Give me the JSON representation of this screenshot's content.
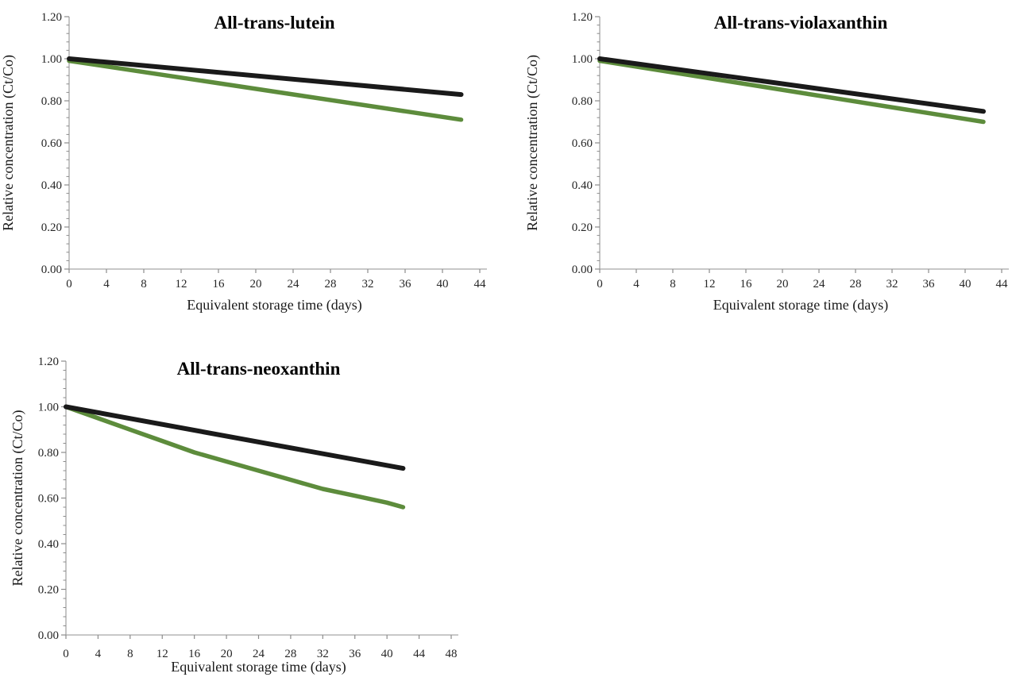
{
  "figure": {
    "background": "#ffffff",
    "axis_line_color": "#a6a6a6",
    "tick_color": "#8c8c8c",
    "tick_label_color": "#262626",
    "black_series_color": "#1a1a1a",
    "green_series_color": "#5d8c3c"
  },
  "chart_data": [
    {
      "type": "line",
      "title": "All-trans-lutein",
      "xlabel": "Equivalent storage time (days)",
      "ylabel": "Relative concentration (Ct/Co)",
      "xlim": [
        0,
        44
      ],
      "ylim": [
        0.0,
        1.2
      ],
      "x_ticks": [
        0,
        4,
        8,
        12,
        16,
        20,
        24,
        28,
        32,
        36,
        40,
        44
      ],
      "x_tick_labels": [
        "0",
        "4",
        "8",
        "12",
        "16",
        "20",
        "24",
        "28",
        "32",
        "36",
        "40",
        "44"
      ],
      "y_ticks": [
        0.0,
        0.2,
        0.4,
        0.6,
        0.8,
        1.0,
        1.2
      ],
      "y_tick_labels": [
        "0.00",
        "0.20",
        "0.40",
        "0.60",
        "0.80",
        "1.00",
        "1.20"
      ],
      "y_minor_tick_step": 0.04,
      "grid": false,
      "legend": false,
      "series": [
        {
          "name": "black-line",
          "color": "#1a1a1a",
          "stroke_width": 6,
          "x": [
            0,
            42
          ],
          "y": [
            1.0,
            0.83
          ]
        },
        {
          "name": "green-line",
          "color": "#5d8c3c",
          "stroke_width": 5.5,
          "x": [
            0,
            42
          ],
          "y": [
            0.99,
            0.71
          ]
        }
      ]
    },
    {
      "type": "line",
      "title": "All-trans-violaxanthin",
      "xlabel": "Equivalent storage time (days)",
      "ylabel": "Relative concentration (Ct/Co)",
      "xlim": [
        0,
        44
      ],
      "ylim": [
        0.0,
        1.2
      ],
      "x_ticks": [
        0,
        4,
        8,
        12,
        16,
        20,
        24,
        28,
        32,
        36,
        40,
        44
      ],
      "x_tick_labels": [
        "0",
        "4",
        "8",
        "12",
        "16",
        "20",
        "24",
        "28",
        "32",
        "36",
        "40",
        "44"
      ],
      "y_ticks": [
        0.0,
        0.2,
        0.4,
        0.6,
        0.8,
        1.0,
        1.2
      ],
      "y_tick_labels": [
        "0.00",
        "0.20",
        "0.40",
        "0.60",
        "0.80",
        "1.00",
        "1.20"
      ],
      "y_minor_tick_step": 0.04,
      "grid": false,
      "legend": false,
      "series": [
        {
          "name": "black-line",
          "color": "#1a1a1a",
          "stroke_width": 6,
          "x": [
            0,
            42
          ],
          "y": [
            1.0,
            0.75
          ]
        },
        {
          "name": "green-line",
          "color": "#5d8c3c",
          "stroke_width": 5.5,
          "x": [
            0,
            42
          ],
          "y": [
            0.99,
            0.7
          ]
        }
      ]
    },
    {
      "type": "line",
      "title": "All-trans-neoxanthin",
      "xlabel": "Equivalent storage time (days)",
      "ylabel": "Relative concentration (Ct/Co)",
      "xlim": [
        0,
        48
      ],
      "ylim": [
        0.0,
        1.2
      ],
      "x_ticks": [
        0,
        4,
        8,
        12,
        16,
        20,
        24,
        28,
        32,
        36,
        40,
        44,
        48
      ],
      "x_tick_labels": [
        "0",
        "4",
        "8",
        "12",
        "16",
        "20",
        "24",
        "28",
        "32",
        "36",
        "40",
        "44",
        "48"
      ],
      "y_ticks": [
        0.0,
        0.2,
        0.4,
        0.6,
        0.8,
        1.0,
        1.2
      ],
      "y_tick_labels": [
        "0.00",
        "0.20",
        "0.40",
        "0.60",
        "0.80",
        "1.00",
        "1.20"
      ],
      "y_minor_tick_step": 0.04,
      "grid": false,
      "legend": false,
      "series": [
        {
          "name": "black-line",
          "color": "#1a1a1a",
          "stroke_width": 6,
          "x": [
            0,
            42
          ],
          "y": [
            1.0,
            0.73
          ]
        },
        {
          "name": "green-line",
          "color": "#5d8c3c",
          "stroke_width": 5.5,
          "x": [
            0,
            4,
            8,
            12,
            16,
            20,
            24,
            28,
            32,
            36,
            40,
            42
          ],
          "y": [
            1.0,
            0.95,
            0.9,
            0.85,
            0.8,
            0.76,
            0.72,
            0.68,
            0.64,
            0.61,
            0.58,
            0.56
          ]
        }
      ]
    }
  ]
}
